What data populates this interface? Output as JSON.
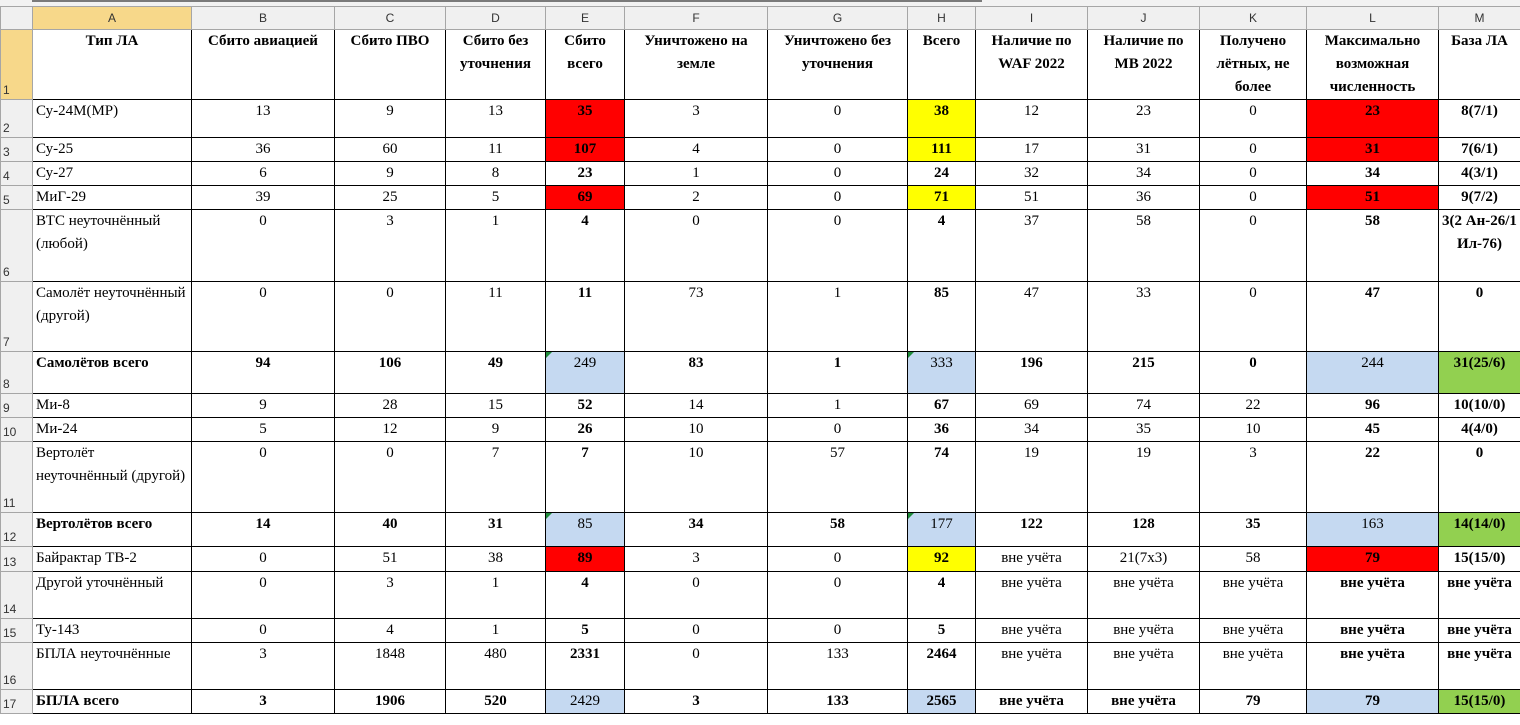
{
  "columns": [
    "A",
    "B",
    "C",
    "D",
    "E",
    "F",
    "G",
    "H",
    "I",
    "J",
    "K",
    "L",
    "M"
  ],
  "header_row": {
    "num": "1",
    "cells": [
      "Тип ЛА",
      "Сбито авиацией",
      "Сбито ПВО",
      "Сбито без уточнения",
      "Сбито всего",
      "Уничтожено на земле",
      "Уничтожено без уточнения",
      "Всего",
      "Наличие по WAF 2022",
      "Наличие по MB 2022",
      "Получено лётных, не более",
      "Максимально возможная численность",
      "База ЛА"
    ]
  },
  "rows": [
    {
      "num": "2",
      "cells": [
        "Су-24М(МР)",
        "13",
        "9",
        "13",
        "35",
        "3",
        "0",
        "38",
        "12",
        "23",
        "0",
        "23",
        "8(7/1)"
      ]
    },
    {
      "num": "3",
      "cells": [
        "Су-25",
        "36",
        "60",
        "11",
        "107",
        "4",
        "0",
        "111",
        "17",
        "31",
        "0",
        "31",
        "7(6/1)"
      ]
    },
    {
      "num": "4",
      "cells": [
        "Су-27",
        "6",
        "9",
        "8",
        "23",
        "1",
        "0",
        "24",
        "32",
        "34",
        "0",
        "34",
        "4(3/1)"
      ]
    },
    {
      "num": "5",
      "cells": [
        "МиГ-29",
        "39",
        "25",
        "5",
        "69",
        "2",
        "0",
        "71",
        "51",
        "36",
        "0",
        "51",
        "9(7/2)"
      ]
    },
    {
      "num": "6",
      "cells": [
        "ВТС неуточнённый (любой)",
        "0",
        "3",
        "1",
        "4",
        "0",
        "0",
        "4",
        "37",
        "58",
        "0",
        "58",
        "3(2 Ан-26/1 Ил-76)"
      ]
    },
    {
      "num": "7",
      "cells": [
        "Самолёт неуточнённый (другой)",
        "0",
        "0",
        "11",
        "11",
        "73",
        "1",
        "85",
        "47",
        "33",
        "0",
        "47",
        "0"
      ]
    },
    {
      "num": "8",
      "cells": [
        "Самолётов всего",
        "94",
        "106",
        "49",
        "249",
        "83",
        "1",
        "333",
        "196",
        "215",
        "0",
        "244",
        "31(25/6)"
      ]
    },
    {
      "num": "9",
      "cells": [
        "Ми-8",
        "9",
        "28",
        "15",
        "52",
        "14",
        "1",
        "67",
        "69",
        "74",
        "22",
        "96",
        "10(10/0)"
      ]
    },
    {
      "num": "10",
      "cells": [
        "Ми-24",
        "5",
        "12",
        "9",
        "26",
        "10",
        "0",
        "36",
        "34",
        "35",
        "10",
        "45",
        "4(4/0)"
      ]
    },
    {
      "num": "11",
      "cells": [
        "Вертолёт неуточнённый (другой)",
        "0",
        "0",
        "7",
        "7",
        "10",
        "57",
        "74",
        "19",
        "19",
        "3",
        "22",
        "0"
      ]
    },
    {
      "num": "12",
      "cells": [
        "Вертолётов всего",
        "14",
        "40",
        "31",
        "85",
        "34",
        "58",
        "177",
        "122",
        "128",
        "35",
        "163",
        "14(14/0)"
      ]
    },
    {
      "num": "13",
      "cells": [
        "Байрактар ТВ-2",
        "0",
        "51",
        "38",
        "89",
        "3",
        "0",
        "92",
        "вне учёта",
        "21(7х3)",
        "58",
        "79",
        "15(15/0)"
      ]
    },
    {
      "num": "14",
      "cells": [
        "Другой уточнённый",
        "0",
        "3",
        "1",
        "4",
        "0",
        "0",
        "4",
        "вне учёта",
        "вне учёта",
        "вне учёта",
        "вне учёта",
        "вне учёта"
      ]
    },
    {
      "num": "15",
      "cells": [
        "Ту-143",
        "0",
        "4",
        "1",
        "5",
        "0",
        "0",
        "5",
        "вне учёта",
        "вне учёта",
        "вне учёта",
        "вне учёта",
        "вне учёта"
      ]
    },
    {
      "num": "16",
      "cells": [
        "БПЛА неуточнённые",
        "3",
        "1848",
        "480",
        "2331",
        "0",
        "133",
        "2464",
        "вне учёта",
        "вне учёта",
        "вне учёта",
        "вне учёта",
        "вне учёта"
      ]
    },
    {
      "num": "17",
      "cells": [
        "БПЛА всего",
        "3",
        "1906",
        "520",
        "2429",
        "3",
        "133",
        "2565",
        "вне учёта",
        "вне учёта",
        "79",
        "79",
        "15(15/0)"
      ]
    }
  ],
  "colors": {
    "red_fill": "#ff0000",
    "yellow_fill": "#ffff00",
    "blue_fill": "#c5d9f1",
    "green_fill": "#92d050",
    "red_text": "#ff0000",
    "header_bg": "#f0f0f0",
    "selected_header_bg": "#f7d88a"
  }
}
